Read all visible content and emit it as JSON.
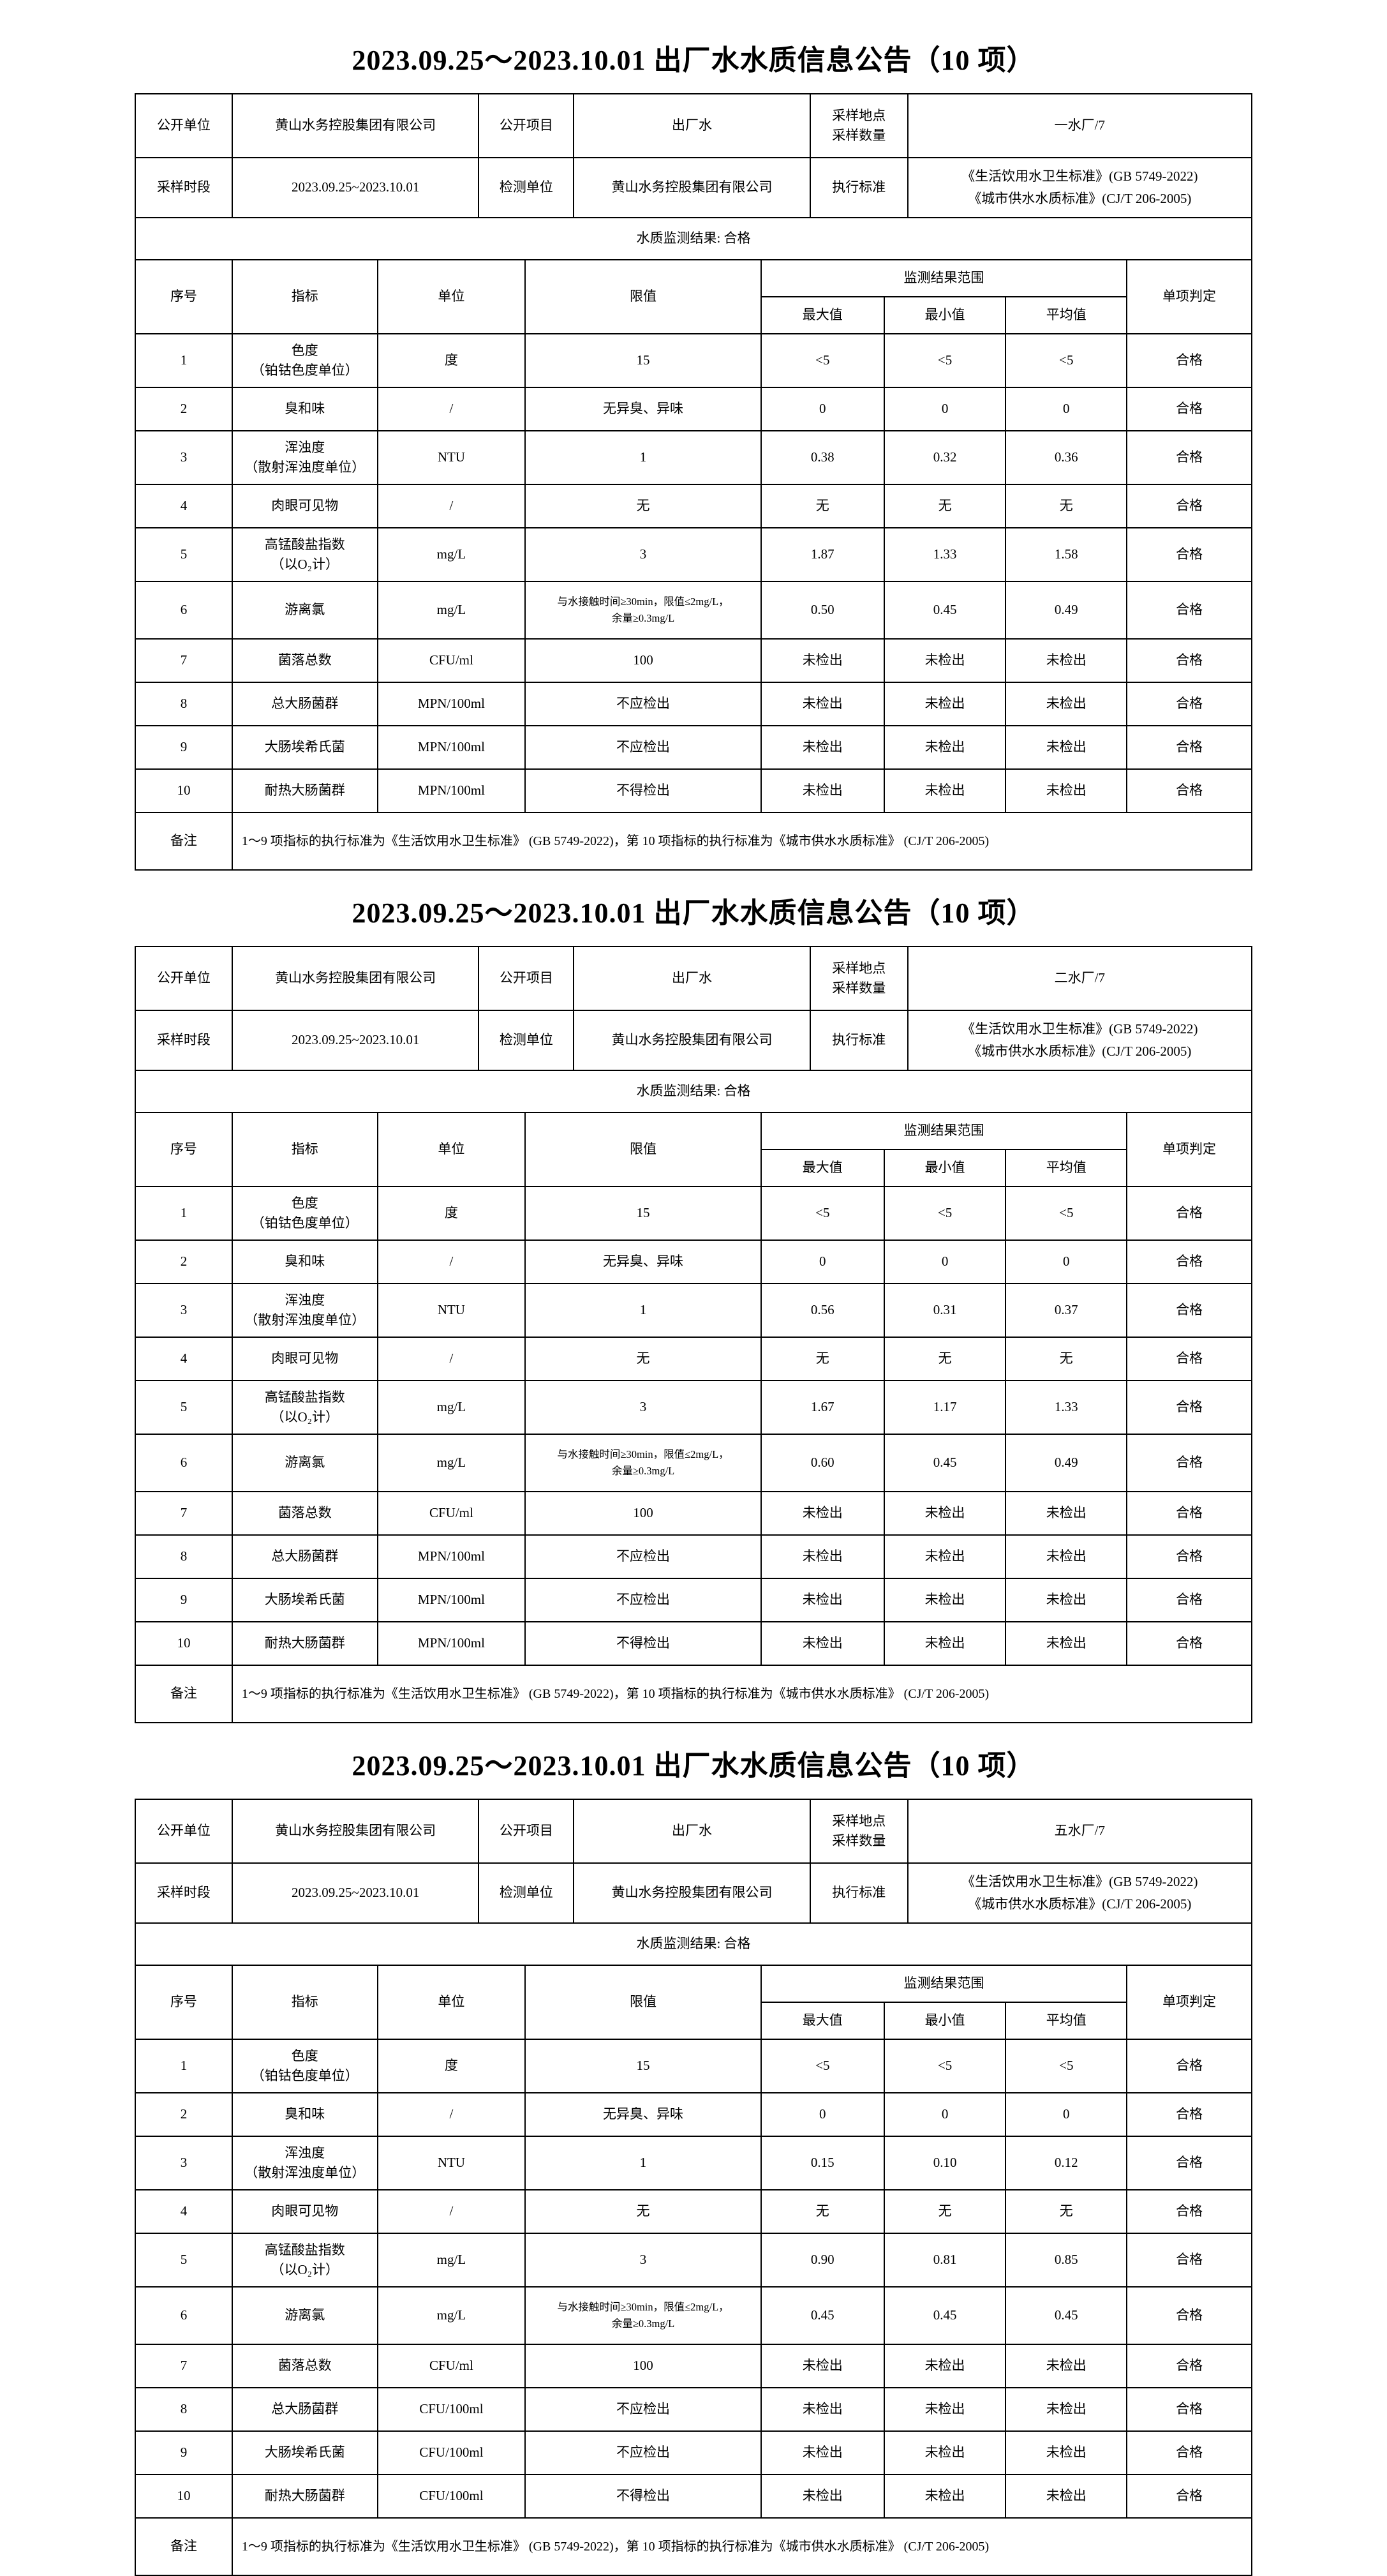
{
  "page": {
    "background_color": "#ffffff",
    "text_color": "#000000",
    "border_color": "#000000"
  },
  "labels": {
    "open_unit": "公开单位",
    "open_project": "公开项目",
    "sampling_site": "采样地点",
    "sampling_count": "采样数量",
    "sampling_period": "采样时段",
    "testing_unit": "检测单位",
    "execution_standard": "执行标准",
    "col_no": "序号",
    "col_indicator": "指标",
    "col_unit": "单位",
    "col_limit": "限值",
    "col_result_range": "监测结果范围",
    "col_max": "最大值",
    "col_min": "最小值",
    "col_avg": "平均值",
    "col_judgement": "单项判定",
    "remark_label": "备注"
  },
  "sections": [
    {
      "title": "2023.09.25～2023.10.01 出厂水水质信息公告（10 项）",
      "info": {
        "company": "黄山水务控股集团有限公司",
        "project": "出厂水",
        "site_count": "一水厂/7",
        "period": "2023.09.25~2023.10.01",
        "test_unit": "黄山水务控股集团有限公司",
        "standards": [
          "《生活饮用水卫生标准》(GB 5749-2022)",
          "《城市供水水质标准》(CJ/T 206-2005)"
        ],
        "result": "水质监测结果: 合格"
      },
      "rows": [
        {
          "no": "1",
          "indicator": [
            "色度",
            "（铂钴色度单位）"
          ],
          "unit": "度",
          "limit": [
            "15"
          ],
          "max": "<5",
          "min": "<5",
          "avg": "<5",
          "judgement": "合格"
        },
        {
          "no": "2",
          "indicator": [
            "臭和味"
          ],
          "unit": "/",
          "limit": [
            "无异臭、异味"
          ],
          "max": "0",
          "min": "0",
          "avg": "0",
          "judgement": "合格"
        },
        {
          "no": "3",
          "indicator": [
            "浑浊度",
            "（散射浑浊度单位）"
          ],
          "unit": "NTU",
          "limit": [
            "1"
          ],
          "max": "0.38",
          "min": "0.32",
          "avg": "0.36",
          "judgement": "合格"
        },
        {
          "no": "4",
          "indicator": [
            "肉眼可见物"
          ],
          "unit": "/",
          "limit": [
            "无"
          ],
          "max": "无",
          "min": "无",
          "avg": "无",
          "judgement": "合格"
        },
        {
          "no": "5",
          "indicator": [
            "高锰酸盐指数",
            "（以O₂计）"
          ],
          "unit": "mg/L",
          "limit": [
            "3"
          ],
          "max": "1.87",
          "min": "1.33",
          "avg": "1.58",
          "judgement": "合格"
        },
        {
          "no": "6",
          "indicator": [
            "游离氯"
          ],
          "unit": "mg/L",
          "limit": [
            "与水接触时间≥30min，限值≤2mg/L，",
            "余量≥0.3mg/L"
          ],
          "max": "0.50",
          "min": "0.45",
          "avg": "0.49",
          "judgement": "合格"
        },
        {
          "no": "7",
          "indicator": [
            "菌落总数"
          ],
          "unit": "CFU/ml",
          "limit": [
            "100"
          ],
          "max": "未检出",
          "min": "未检出",
          "avg": "未检出",
          "judgement": "合格"
        },
        {
          "no": "8",
          "indicator": [
            "总大肠菌群"
          ],
          "unit": "MPN/100ml",
          "limit": [
            "不应检出"
          ],
          "max": "未检出",
          "min": "未检出",
          "avg": "未检出",
          "judgement": "合格"
        },
        {
          "no": "9",
          "indicator": [
            "大肠埃希氏菌"
          ],
          "unit": "MPN/100ml",
          "limit": [
            "不应检出"
          ],
          "max": "未检出",
          "min": "未检出",
          "avg": "未检出",
          "judgement": "合格"
        },
        {
          "no": "10",
          "indicator": [
            "耐热大肠菌群"
          ],
          "unit": "MPN/100ml",
          "limit": [
            "不得检出"
          ],
          "max": "未检出",
          "min": "未检出",
          "avg": "未检出",
          "judgement": "合格"
        }
      ],
      "remark": "1～9 项指标的执行标准为《生活饮用水卫生标准》 (GB 5749-2022)，第 10 项指标的执行标准为《城市供水水质标准》 (CJ/T 206-2005)"
    },
    {
      "title": "2023.09.25～2023.10.01 出厂水水质信息公告（10 项）",
      "info": {
        "company": "黄山水务控股集团有限公司",
        "project": "出厂水",
        "site_count": "二水厂/7",
        "period": "2023.09.25~2023.10.01",
        "test_unit": "黄山水务控股集团有限公司",
        "standards": [
          "《生活饮用水卫生标准》(GB 5749-2022)",
          "《城市供水水质标准》(CJ/T 206-2005)"
        ],
        "result": "水质监测结果: 合格"
      },
      "rows": [
        {
          "no": "1",
          "indicator": [
            "色度",
            "（铂钴色度单位）"
          ],
          "unit": "度",
          "limit": [
            "15"
          ],
          "max": "<5",
          "min": "<5",
          "avg": "<5",
          "judgement": "合格"
        },
        {
          "no": "2",
          "indicator": [
            "臭和味"
          ],
          "unit": "/",
          "limit": [
            "无异臭、异味"
          ],
          "max": "0",
          "min": "0",
          "avg": "0",
          "judgement": "合格"
        },
        {
          "no": "3",
          "indicator": [
            "浑浊度",
            "（散射浑浊度单位）"
          ],
          "unit": "NTU",
          "limit": [
            "1"
          ],
          "max": "0.56",
          "min": "0.31",
          "avg": "0.37",
          "judgement": "合格"
        },
        {
          "no": "4",
          "indicator": [
            "肉眼可见物"
          ],
          "unit": "/",
          "limit": [
            "无"
          ],
          "max": "无",
          "min": "无",
          "avg": "无",
          "judgement": "合格"
        },
        {
          "no": "5",
          "indicator": [
            "高锰酸盐指数",
            "（以O₂计）"
          ],
          "unit": "mg/L",
          "limit": [
            "3"
          ],
          "max": "1.67",
          "min": "1.17",
          "avg": "1.33",
          "judgement": "合格"
        },
        {
          "no": "6",
          "indicator": [
            "游离氯"
          ],
          "unit": "mg/L",
          "limit": [
            "与水接触时间≥30min，限值≤2mg/L，",
            "余量≥0.3mg/L"
          ],
          "max": "0.60",
          "min": "0.45",
          "avg": "0.49",
          "judgement": "合格"
        },
        {
          "no": "7",
          "indicator": [
            "菌落总数"
          ],
          "unit": "CFU/ml",
          "limit": [
            "100"
          ],
          "max": "未检出",
          "min": "未检出",
          "avg": "未检出",
          "judgement": "合格"
        },
        {
          "no": "8",
          "indicator": [
            "总大肠菌群"
          ],
          "unit": "MPN/100ml",
          "limit": [
            "不应检出"
          ],
          "max": "未检出",
          "min": "未检出",
          "avg": "未检出",
          "judgement": "合格"
        },
        {
          "no": "9",
          "indicator": [
            "大肠埃希氏菌"
          ],
          "unit": "MPN/100ml",
          "limit": [
            "不应检出"
          ],
          "max": "未检出",
          "min": "未检出",
          "avg": "未检出",
          "judgement": "合格"
        },
        {
          "no": "10",
          "indicator": [
            "耐热大肠菌群"
          ],
          "unit": "MPN/100ml",
          "limit": [
            "不得检出"
          ],
          "max": "未检出",
          "min": "未检出",
          "avg": "未检出",
          "judgement": "合格"
        }
      ],
      "remark": "1～9 项指标的执行标准为《生活饮用水卫生标准》 (GB 5749-2022)，第 10 项指标的执行标准为《城市供水水质标准》 (CJ/T 206-2005)"
    },
    {
      "title": "2023.09.25～2023.10.01 出厂水水质信息公告（10 项）",
      "info": {
        "company": "黄山水务控股集团有限公司",
        "project": "出厂水",
        "site_count": "五水厂/7",
        "period": "2023.09.25~2023.10.01",
        "test_unit": "黄山水务控股集团有限公司",
        "standards": [
          "《生活饮用水卫生标准》(GB 5749-2022)",
          "《城市供水水质标准》(CJ/T 206-2005)"
        ],
        "result": "水质监测结果: 合格"
      },
      "rows": [
        {
          "no": "1",
          "indicator": [
            "色度",
            "（铂钴色度单位）"
          ],
          "unit": "度",
          "limit": [
            "15"
          ],
          "max": "<5",
          "min": "<5",
          "avg": "<5",
          "judgement": "合格"
        },
        {
          "no": "2",
          "indicator": [
            "臭和味"
          ],
          "unit": "/",
          "limit": [
            "无异臭、异味"
          ],
          "max": "0",
          "min": "0",
          "avg": "0",
          "judgement": "合格"
        },
        {
          "no": "3",
          "indicator": [
            "浑浊度",
            "（散射浑浊度单位）"
          ],
          "unit": "NTU",
          "limit": [
            "1"
          ],
          "max": "0.15",
          "min": "0.10",
          "avg": "0.12",
          "judgement": "合格"
        },
        {
          "no": "4",
          "indicator": [
            "肉眼可见物"
          ],
          "unit": "/",
          "limit": [
            "无"
          ],
          "max": "无",
          "min": "无",
          "avg": "无",
          "judgement": "合格"
        },
        {
          "no": "5",
          "indicator": [
            "高锰酸盐指数",
            "（以O₂计）"
          ],
          "unit": "mg/L",
          "limit": [
            "3"
          ],
          "max": "0.90",
          "min": "0.81",
          "avg": "0.85",
          "judgement": "合格"
        },
        {
          "no": "6",
          "indicator": [
            "游离氯"
          ],
          "unit": "mg/L",
          "limit": [
            "与水接触时间≥30min，限值≤2mg/L，",
            "余量≥0.3mg/L"
          ],
          "max": "0.45",
          "min": "0.45",
          "avg": "0.45",
          "judgement": "合格"
        },
        {
          "no": "7",
          "indicator": [
            "菌落总数"
          ],
          "unit": "CFU/ml",
          "limit": [
            "100"
          ],
          "max": "未检出",
          "min": "未检出",
          "avg": "未检出",
          "judgement": "合格"
        },
        {
          "no": "8",
          "indicator": [
            "总大肠菌群"
          ],
          "unit": "CFU/100ml",
          "limit": [
            "不应检出"
          ],
          "max": "未检出",
          "min": "未检出",
          "avg": "未检出",
          "judgement": "合格"
        },
        {
          "no": "9",
          "indicator": [
            "大肠埃希氏菌"
          ],
          "unit": "CFU/100ml",
          "limit": [
            "不应检出"
          ],
          "max": "未检出",
          "min": "未检出",
          "avg": "未检出",
          "judgement": "合格"
        },
        {
          "no": "10",
          "indicator": [
            "耐热大肠菌群"
          ],
          "unit": "CFU/100ml",
          "limit": [
            "不得检出"
          ],
          "max": "未检出",
          "min": "未检出",
          "avg": "未检出",
          "judgement": "合格"
        }
      ],
      "remark": "1～9 项指标的执行标准为《生活饮用水卫生标准》 (GB 5749-2022)，第 10 项指标的执行标准为《城市供水水质标准》 (CJ/T 206-2005)"
    }
  ]
}
